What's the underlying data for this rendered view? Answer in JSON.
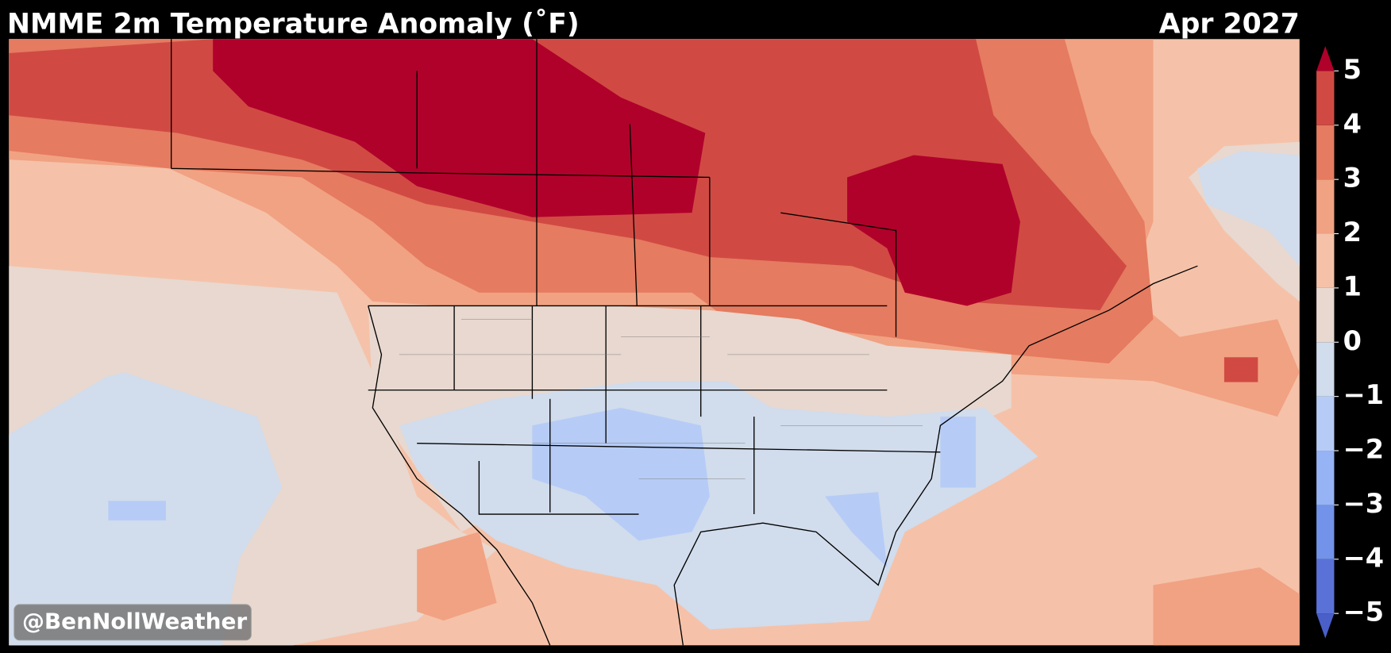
{
  "header": {
    "title": "NMME 2m Temperature Anomaly (˚F)",
    "date": "Apr 2027"
  },
  "colorbar": {
    "type": "colorbar",
    "ylim": [
      -5,
      5
    ],
    "ticks": [
      {
        "value": -5,
        "label": "−5"
      },
      {
        "value": -4,
        "label": "−4"
      },
      {
        "value": -3,
        "label": "−3"
      },
      {
        "value": -2,
        "label": "−2"
      },
      {
        "value": -1,
        "label": "−1"
      },
      0,
      1,
      2,
      3,
      4,
      5
    ],
    "colors": [
      "#5a72d8",
      "#7393ea",
      "#96b3f5",
      "#b6ccf6",
      "#d1dcec",
      "#e8d8cf",
      "#f5c2a9",
      "#f1a283",
      "#e57b60",
      "#d04a43"
    ],
    "under_color": "#4a5fc8",
    "over_color": "#b0012b"
  },
  "watermark": "@BenNollWeather"
}
